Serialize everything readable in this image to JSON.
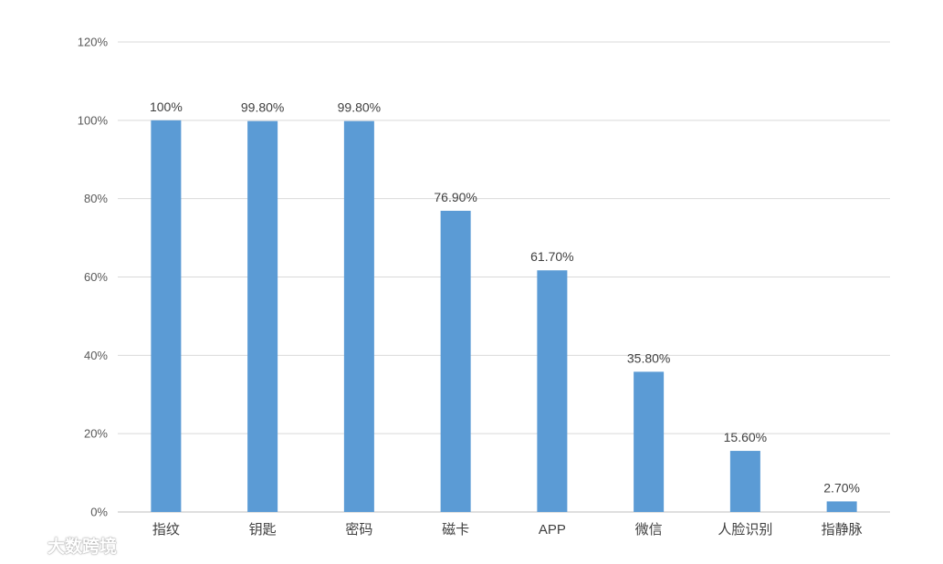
{
  "chart_data": {
    "type": "bar",
    "categories": [
      "指纹",
      "钥匙",
      "密码",
      "磁卡",
      "APP",
      "微信",
      "人脸识别",
      "指静脉"
    ],
    "values": [
      100,
      99.8,
      99.8,
      76.9,
      61.7,
      35.8,
      15.6,
      2.7
    ],
    "data_labels": [
      "100%",
      "99.80%",
      "99.80%",
      "76.90%",
      "61.70%",
      "35.80%",
      "15.60%",
      "2.70%"
    ],
    "ylim": [
      0,
      120
    ],
    "yticks": [
      0,
      20,
      40,
      60,
      80,
      100,
      120
    ],
    "ytick_labels": [
      "0%",
      "20%",
      "40%",
      "60%",
      "80%",
      "100%",
      "120%"
    ],
    "grid": true,
    "legend": "none",
    "bar_color": "#5b9bd5"
  },
  "watermark": {
    "text": "大数跨境"
  }
}
